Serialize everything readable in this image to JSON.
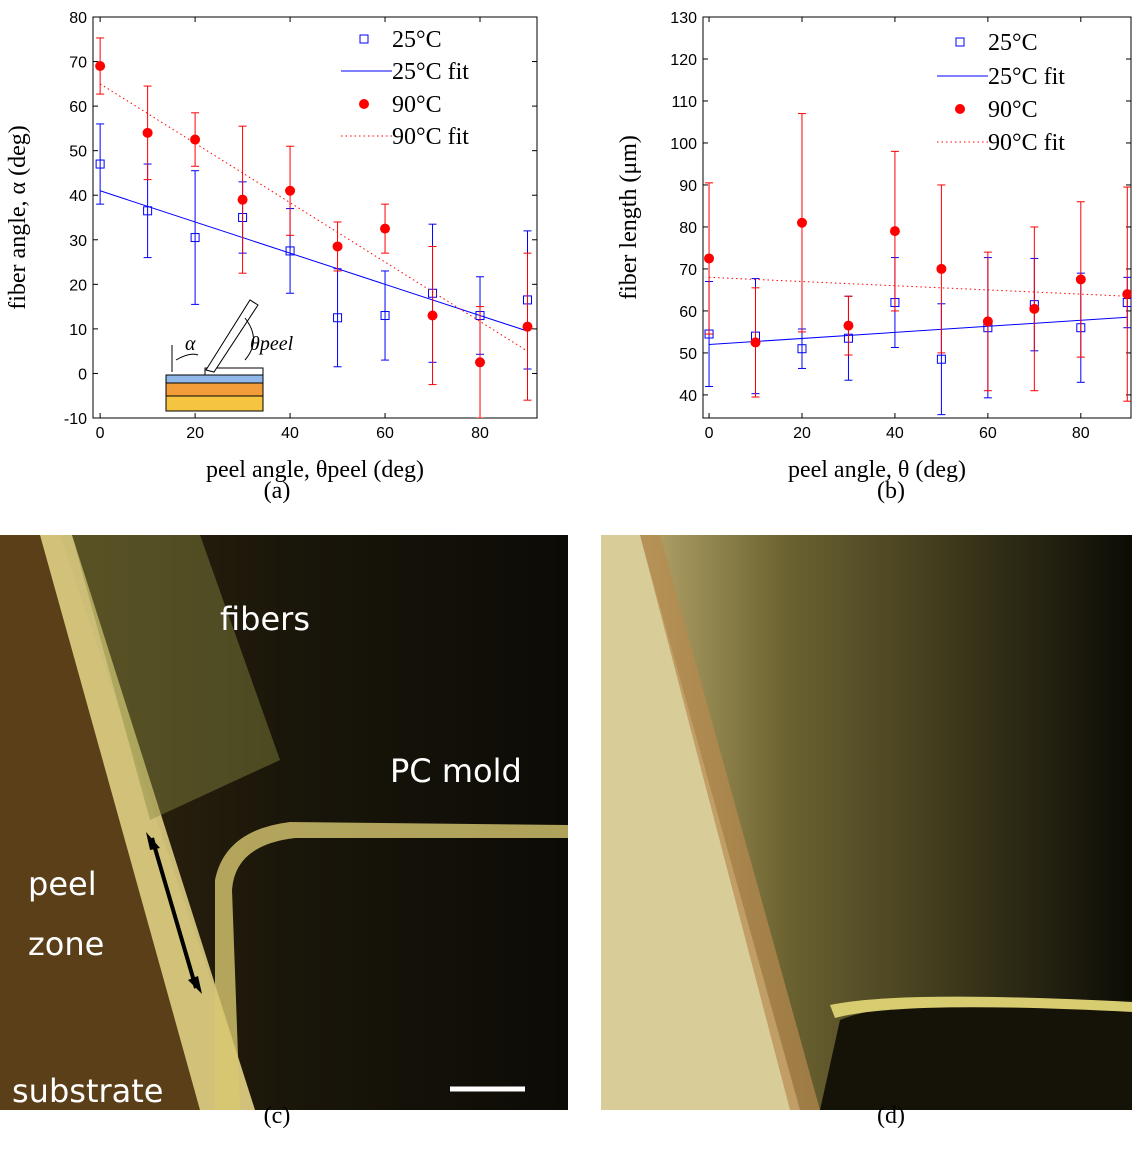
{
  "chart_data": [
    {
      "type": "scatter",
      "panel": "(a)",
      "xlabel": "peel angle, θpeel (deg)",
      "ylabel": "fiber angle, α (deg)",
      "xlim": [
        -1.5,
        92
      ],
      "ylim": [
        -10,
        80
      ],
      "xticks": [
        0,
        20,
        40,
        60,
        80
      ],
      "yticks": [
        -10,
        0,
        10,
        20,
        30,
        40,
        50,
        60,
        70,
        80
      ],
      "annotations": [
        "α",
        "θpeel"
      ],
      "series": [
        {
          "name": "25°C",
          "color": "#0000ff",
          "marker": "square",
          "x": [
            0,
            10,
            20,
            30,
            40,
            50,
            60,
            70,
            80,
            90
          ],
          "values": [
            47,
            36.5,
            30.5,
            35,
            27.5,
            12.5,
            13,
            18,
            13,
            16.5
          ],
          "errors": [
            9,
            10.5,
            15,
            8,
            9.5,
            11,
            10,
            15.5,
            8.7,
            15.5
          ]
        },
        {
          "name": "25°C fit",
          "color": "#0000ff",
          "line": "solid",
          "x": [
            0,
            90
          ],
          "values": [
            41,
            9.5
          ]
        },
        {
          "name": "90°C",
          "color": "#ff0000",
          "marker": "circle",
          "x": [
            0,
            10,
            20,
            30,
            40,
            50,
            60,
            70,
            80,
            90
          ],
          "values": [
            69,
            54,
            52.5,
            39,
            41,
            28.5,
            32.5,
            13,
            2.5,
            10.5
          ],
          "errors": [
            6.3,
            10.5,
            6,
            16.5,
            10,
            5.5,
            5.5,
            15.5,
            12.5,
            16.5
          ]
        },
        {
          "name": "90°C fit",
          "color": "#ff0000",
          "line": "dotted",
          "x": [
            0,
            90
          ],
          "values": [
            65,
            5
          ]
        }
      ]
    },
    {
      "type": "scatter",
      "panel": "(b)",
      "xlabel": "peel angle, θ (deg)",
      "ylabel": "fiber length (μm)",
      "xlim": [
        -1.3,
        90.8
      ],
      "ylim": [
        34.5,
        130
      ],
      "xticks": [
        0,
        20,
        40,
        60,
        80
      ],
      "yticks": [
        40,
        50,
        60,
        70,
        80,
        90,
        100,
        110,
        120,
        130
      ],
      "series": [
        {
          "name": "25°C",
          "color": "#0000ff",
          "marker": "square",
          "x": [
            0,
            10,
            20,
            30,
            40,
            50,
            60,
            70,
            80,
            90
          ],
          "values": [
            54.5,
            54,
            51,
            53.5,
            62,
            48.5,
            56,
            61.5,
            56,
            62
          ],
          "errors": [
            12.5,
            13.7,
            4.7,
            10,
            10.7,
            13.2,
            16.7,
            11,
            13,
            6
          ]
        },
        {
          "name": "25°C fit",
          "color": "#0000ff",
          "line": "solid",
          "x": [
            0,
            90
          ],
          "values": [
            52,
            58.5
          ]
        },
        {
          "name": "90°C",
          "color": "#ff0000",
          "marker": "circle",
          "x": [
            0,
            10,
            20,
            30,
            40,
            50,
            60,
            70,
            80,
            90
          ],
          "values": [
            72.5,
            52.5,
            81,
            56.5,
            79,
            70,
            57.5,
            60.5,
            67.5,
            64
          ],
          "errors": [
            18,
            13,
            26,
            7,
            19,
            20,
            16.5,
            19.5,
            18.5,
            25.5
          ]
        },
        {
          "name": "90°C fit",
          "color": "#ff0000",
          "line": "dotted",
          "x": [
            0,
            90
          ],
          "values": [
            68,
            63.5
          ]
        }
      ]
    }
  ],
  "images": [
    {
      "panel": "(c)",
      "labels": [
        "fibers",
        "PC mold",
        "peel",
        "zone",
        "substrate"
      ]
    },
    {
      "panel": "(d)"
    }
  ]
}
